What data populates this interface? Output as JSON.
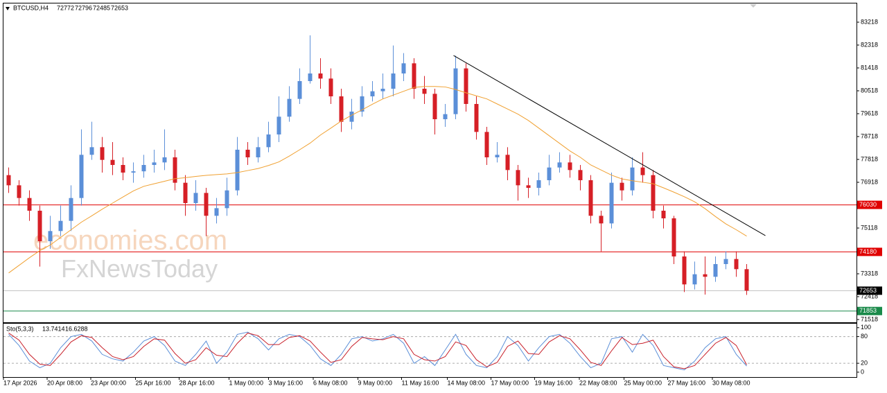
{
  "chart_data": [
    {
      "type": "candlestick",
      "title": "BTCUSD,H4",
      "header_values": [
        72772,
        72796,
        72485,
        72653
      ],
      "watermark": [
        "economies.com",
        "FxNewsToday"
      ],
      "up_color": "#5b8fd8",
      "down_color": "#d61f26",
      "open": [
        77200,
        76800,
        76300,
        75800,
        74600,
        75000,
        75400,
        76300,
        78000,
        78300,
        77800,
        77600,
        77300,
        77350,
        77600,
        77700,
        77900,
        76900,
        76100,
        76500,
        75600,
        75900,
        76600,
        78200,
        77900,
        78300,
        78800,
        79500,
        80200,
        80900,
        81200,
        81000,
        80300,
        79300,
        79700,
        80300,
        80500,
        80600,
        81200,
        81600,
        80600,
        80400,
        79400,
        79600,
        81400,
        80000,
        78900,
        77900,
        78000,
        77400,
        76800,
        76700,
        77000,
        77500,
        77700,
        77400,
        77000,
        75600,
        75300,
        76900,
        76600,
        77500,
        77200,
        75800,
        75500,
        74000,
        72900,
        73300,
        73200,
        73700,
        73900,
        73500
      ],
      "high": [
        77500,
        77000,
        76600,
        76000,
        75600,
        76000,
        76800,
        79000,
        79300,
        78700,
        78500,
        77900,
        77700,
        78000,
        78200,
        79000,
        78200,
        77200,
        77000,
        76700,
        76300,
        77100,
        78700,
        78500,
        78700,
        79300,
        80300,
        80700,
        81400,
        82700,
        81800,
        81400,
        80600,
        80200,
        80700,
        80900,
        81200,
        82300,
        82000,
        81800,
        81100,
        80600,
        80000,
        81900,
        81600,
        80300,
        79100,
        78500,
        78300,
        77600,
        77100,
        77300,
        78000,
        78100,
        78000,
        77600,
        77200,
        75800,
        77300,
        77100,
        77900,
        78100,
        77400,
        76000,
        75600,
        74200,
        73800,
        74000,
        74000,
        74200,
        74200,
        73700
      ],
      "low": [
        76500,
        76000,
        75400,
        73600,
        74300,
        74800,
        75000,
        76000,
        77800,
        77300,
        77200,
        77000,
        76900,
        77100,
        77300,
        77400,
        76600,
        75600,
        75800,
        74800,
        75300,
        75600,
        76400,
        77600,
        77700,
        78100,
        78500,
        79300,
        80000,
        80800,
        80600,
        80000,
        78900,
        79000,
        79500,
        80100,
        80200,
        80300,
        80900,
        80200,
        80000,
        78800,
        79100,
        79400,
        79700,
        78600,
        77600,
        77700,
        77000,
        76200,
        76300,
        76400,
        76800,
        77300,
        77100,
        76600,
        75300,
        74200,
        75100,
        76200,
        76400,
        76900,
        75500,
        75100,
        73700,
        72600,
        72700,
        72500,
        73000,
        73500,
        73200,
        72485
      ],
      "close": [
        76800,
        76300,
        75800,
        74600,
        75000,
        75400,
        76300,
        78000,
        78300,
        77800,
        77600,
        77300,
        77350,
        77600,
        77700,
        77900,
        76900,
        76100,
        76500,
        75600,
        75900,
        76600,
        78200,
        77900,
        78300,
        78800,
        79500,
        80200,
        80900,
        81200,
        81000,
        80300,
        79300,
        79700,
        80300,
        80500,
        80600,
        81200,
        81600,
        80600,
        80400,
        79400,
        79600,
        81400,
        80000,
        78900,
        77900,
        78000,
        77400,
        76800,
        76700,
        77000,
        77500,
        77700,
        77400,
        77000,
        75600,
        75300,
        76900,
        76600,
        77500,
        77200,
        75800,
        75500,
        74000,
        72900,
        73300,
        73200,
        73700,
        73900,
        73500,
        72653
      ],
      "ma": {
        "color": "#f0a030",
        "values": [
          73350,
          73650,
          73950,
          74230,
          74450,
          74750,
          75050,
          75350,
          75600,
          75860,
          76100,
          76340,
          76580,
          76760,
          76860,
          76960,
          77060,
          77100,
          77150,
          77190,
          77220,
          77250,
          77300,
          77380,
          77460,
          77580,
          77720,
          77950,
          78200,
          78460,
          78780,
          79050,
          79330,
          79560,
          79770,
          79990,
          80200,
          80350,
          80500,
          80650,
          80690,
          80690,
          80670,
          80570,
          80440,
          80320,
          80200,
          80000,
          79800,
          79600,
          79350,
          79050,
          78750,
          78450,
          78150,
          77900,
          77600,
          77400,
          77200,
          77050,
          76980,
          76920,
          76860,
          76700,
          76530,
          76350,
          76150,
          75880,
          75570,
          75280,
          75050,
          74800
        ]
      },
      "trendline": {
        "x": [
          43.3,
          73.3
        ],
        "y": [
          81909,
          74819
        ],
        "color": "#000000"
      },
      "levels": [
        {
          "value": 76030,
          "color": "#e00000",
          "box": "#e00000"
        },
        {
          "value": 74180,
          "color": "#e00000",
          "box": "#e00000"
        },
        {
          "value": 72653,
          "color": "#c0c0c0",
          "box": "#000000"
        },
        {
          "value": 71853,
          "color": "#1a8a4a",
          "box": "#1a8a4a"
        }
      ],
      "xlim": [
        0,
        82
      ],
      "xticks": [
        {
          "value": 0,
          "label": "17 Apr 2026"
        },
        {
          "value": 4.2,
          "label": "20 Apr 08:00"
        },
        {
          "value": 8.4,
          "label": "23 Apr 00:00"
        },
        {
          "value": 12.7,
          "label": "25 Apr 16:00"
        },
        {
          "value": 16.9,
          "label": "28 Apr 16:00"
        },
        {
          "value": 21.7,
          "label": "1 May 00:00"
        },
        {
          "value": 25.5,
          "label": "3 May 16:00"
        },
        {
          "value": 29.8,
          "label": "6 May 08:00"
        },
        {
          "value": 34.1,
          "label": "9 May 00:00"
        },
        {
          "value": 38.3,
          "label": "11 May 16:00"
        },
        {
          "value": 42.7,
          "label": "14 May 08:00"
        },
        {
          "value": 46.9,
          "label": "17 May 00:00"
        },
        {
          "value": 51.1,
          "label": "19 May 16:00"
        },
        {
          "value": 55.4,
          "label": "22 May 08:00"
        },
        {
          "value": 59.7,
          "label": "25 May 00:00"
        },
        {
          "value": 63.9,
          "label": "27 May 16:00"
        },
        {
          "value": 68.2,
          "label": "30 May 08:00"
        }
      ],
      "ylim": [
        71409,
        83982
      ],
      "yticks": [
        83218,
        82318,
        81418,
        80518,
        79618,
        78718,
        77818,
        76918,
        75118,
        73318,
        72418,
        71518
      ]
    },
    {
      "type": "line",
      "title": "Sto(5,3,3)",
      "ylim": [
        -11,
        109
      ],
      "yticks": [
        100,
        80,
        20,
        0
      ],
      "dashed_levels": [
        80,
        20
      ],
      "series": [
        {
          "name": "main",
          "color": "#5b8fd8",
          "values": [
            85,
            60,
            25,
            10,
            20,
            55,
            80,
            85,
            70,
            40,
            30,
            25,
            45,
            70,
            80,
            60,
            25,
            15,
            40,
            70,
            20,
            45,
            85,
            90,
            75,
            50,
            75,
            85,
            80,
            60,
            30,
            15,
            40,
            75,
            80,
            70,
            75,
            85,
            65,
            20,
            35,
            15,
            50,
            85,
            40,
            15,
            10,
            35,
            80,
            60,
            25,
            55,
            80,
            85,
            65,
            35,
            10,
            20,
            75,
            80,
            45,
            85,
            60,
            15,
            10,
            5,
            25,
            55,
            75,
            80,
            40,
            13.7414
          ]
        },
        {
          "name": "signal",
          "color": "#c8202a",
          "values": [
            88,
            72,
            40,
            18,
            15,
            40,
            68,
            82,
            78,
            55,
            35,
            28,
            35,
            58,
            75,
            72,
            42,
            20,
            28,
            55,
            38,
            35,
            65,
            88,
            82,
            62,
            62,
            78,
            82,
            70,
            45,
            22,
            28,
            58,
            78,
            75,
            73,
            80,
            75,
            40,
            28,
            25,
            35,
            68,
            60,
            28,
            12,
            22,
            58,
            70,
            42,
            40,
            68,
            82,
            75,
            50,
            22,
            15,
            48,
            78,
            62,
            65,
            72,
            35,
            12,
            8,
            15,
            40,
            65,
            78,
            60,
            16.6288
          ]
        }
      ]
    }
  ]
}
